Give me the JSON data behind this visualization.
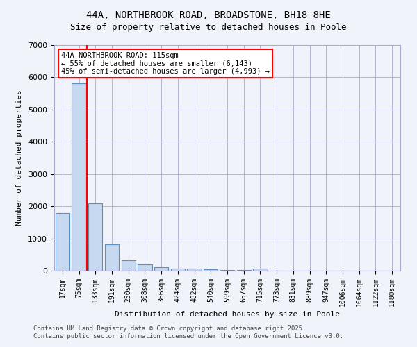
{
  "title_line1": "44A, NORTHBROOK ROAD, BROADSTONE, BH18 8HE",
  "title_line2": "Size of property relative to detached houses in Poole",
  "xlabel": "Distribution of detached houses by size in Poole",
  "ylabel": "Number of detached properties",
  "categories": [
    "17sqm",
    "75sqm",
    "133sqm",
    "191sqm",
    "250sqm",
    "308sqm",
    "366sqm",
    "424sqm",
    "482sqm",
    "540sqm",
    "599sqm",
    "657sqm",
    "715sqm",
    "773sqm",
    "831sqm",
    "889sqm",
    "947sqm",
    "1006sqm",
    "1064sqm",
    "1122sqm",
    "1180sqm"
  ],
  "values": [
    1780,
    5820,
    2080,
    820,
    330,
    185,
    110,
    75,
    55,
    35,
    25,
    18,
    60,
    0,
    0,
    0,
    0,
    0,
    0,
    0,
    0
  ],
  "bar_color": "#c6d9f0",
  "bar_edge_color": "#5a8fc3",
  "red_line_index": 2,
  "red_line_x": 2,
  "annotation_title": "44A NORTHBROOK ROAD: 115sqm",
  "annotation_line2": "← 55% of detached houses are smaller (6,143)",
  "annotation_line3": "45% of semi-detached houses are larger (4,993) →",
  "ylim": [
    0,
    7000
  ],
  "yticks": [
    0,
    1000,
    2000,
    3000,
    4000,
    5000,
    6000,
    7000
  ],
  "footer_line1": "Contains HM Land Registry data © Crown copyright and database right 2025.",
  "footer_line2": "Contains public sector information licensed under the Open Government Licence v3.0.",
  "bg_color": "#f0f4fa",
  "plot_bg_color": "#f0f4fa"
}
